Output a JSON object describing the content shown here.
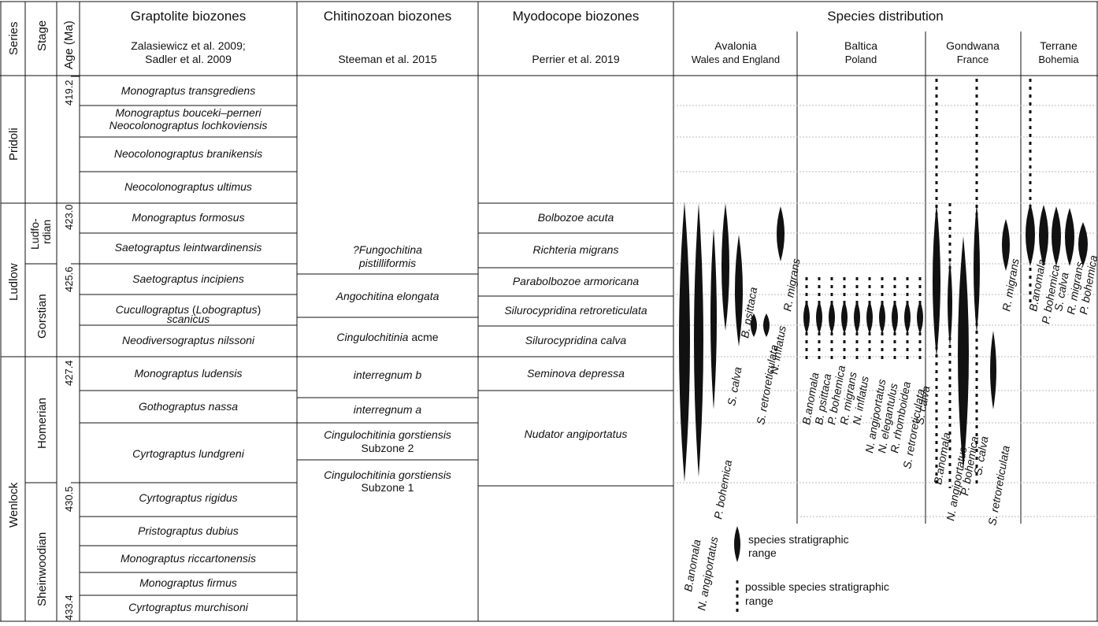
{
  "headers": {
    "series": "Series",
    "stage": "Stage",
    "age": "Age (Ma)",
    "graptolite_title": "Graptolite biozones",
    "graptolite_ref_line1": "Zalasiewicz et al. 2009;",
    "graptolite_ref_line2": "Sadler et al. 2009",
    "chitinozoan_title": "Chitinozoan biozones",
    "chitinozoan_ref": "Steeman et al. 2015",
    "myodocope_title": "Myodocope biozones",
    "myodocope_ref": "Perrier et al. 2019",
    "species_title": "Species distribution"
  },
  "regions": [
    {
      "name": "Avalonia",
      "sub": "Wales and England"
    },
    {
      "name": "Baltica",
      "sub": "Poland"
    },
    {
      "name": "Gondwana",
      "sub": "France"
    },
    {
      "name": "Terrane",
      "sub": "Bohemia"
    }
  ],
  "series": [
    "Pridoli",
    "Ludlow",
    "Wenlock"
  ],
  "stages": [
    "Ludfo-",
    "rdian",
    "Gorstian",
    "Homerian",
    "Sheinwoodian"
  ],
  "ages": [
    "419.2",
    "423.0",
    "425.6",
    "427.4",
    "430.5",
    "433.4"
  ],
  "graptolite_zones": [
    [
      "Monograptus transgrediens"
    ],
    [
      "Monograptus bouceki–perneri",
      "Neocolonograptus lochkoviensis"
    ],
    [
      "Neocolonograptus branikensis"
    ],
    [
      "Neocolonograptus ultimus"
    ],
    [
      "Monograptus formosus"
    ],
    [
      "Saetograptus leintwardinensis"
    ],
    [
      "Saetograptus incipiens"
    ],
    [
      "Cucullograptus (Lobograptus)",
      "scanicus"
    ],
    [
      "Neodiversograptus nilssoni"
    ],
    [
      "Monograptus ludensis"
    ],
    [
      "Gothograptus nassa"
    ],
    [
      "Cyrtograptus lundgreni"
    ],
    [
      "Cyrtograptus rigidus"
    ],
    [
      "Pristograptus dubius"
    ],
    [
      "Monograptus riccartonensis"
    ],
    [
      "Monograptus firmus"
    ],
    [
      "Cyrtograptus murchisoni"
    ]
  ],
  "chitinozoan_zones": {
    "z1a": "?Fungochitina",
    "z1b": "pistilliformis",
    "z2": "Angochitina elongata",
    "z3a": "Cingulochitinia",
    "z3b": " acme",
    "z4": "interregnum b",
    "z5": "interregnum a",
    "z6a": "Cingulochitinia gorstiensis",
    "z6b": "Subzone 2",
    "z7a": "Cingulochitinia gorstiensis",
    "z7b": "Subzone 1"
  },
  "myodocope_zones": [
    "Bolbozoe acuta",
    "Richteria migrans",
    "Parabolbozoe armoricana",
    "Silurocypridina retroreticulata",
    "Silurocypridina calva",
    "Seminova depressa",
    "Nudator angiportatus"
  ],
  "species": {
    "avalonia": [
      "B.anomala",
      "N. angiportatus",
      "P. bohemica",
      "S. calva",
      "B. psittaca",
      "S. retroreticulata",
      "N. inflatus",
      "R. migrans"
    ],
    "baltica": [
      "B.anomala",
      "B. psittaca",
      "P. bohemica",
      "R. migrans",
      "N. inflatus",
      "N. angiportatus",
      "N. elegantulus",
      "R. rhomboidea",
      "S. retroreticulata",
      "S. calva"
    ],
    "gondwana": [
      "B.anomala",
      "N. angiportatus",
      "P. bohemica",
      "S. calva",
      "S. retroreticulata",
      "R. migrans"
    ],
    "bohemia": [
      "B.anomala",
      "P. bohemica",
      "S. calva",
      "R. migrans",
      "P. bohemica"
    ]
  },
  "legend": {
    "range_line1": "species stratigraphic",
    "range_line2": "range",
    "possible_line1": "possible species stratigraphic",
    "possible_line2": "range"
  }
}
